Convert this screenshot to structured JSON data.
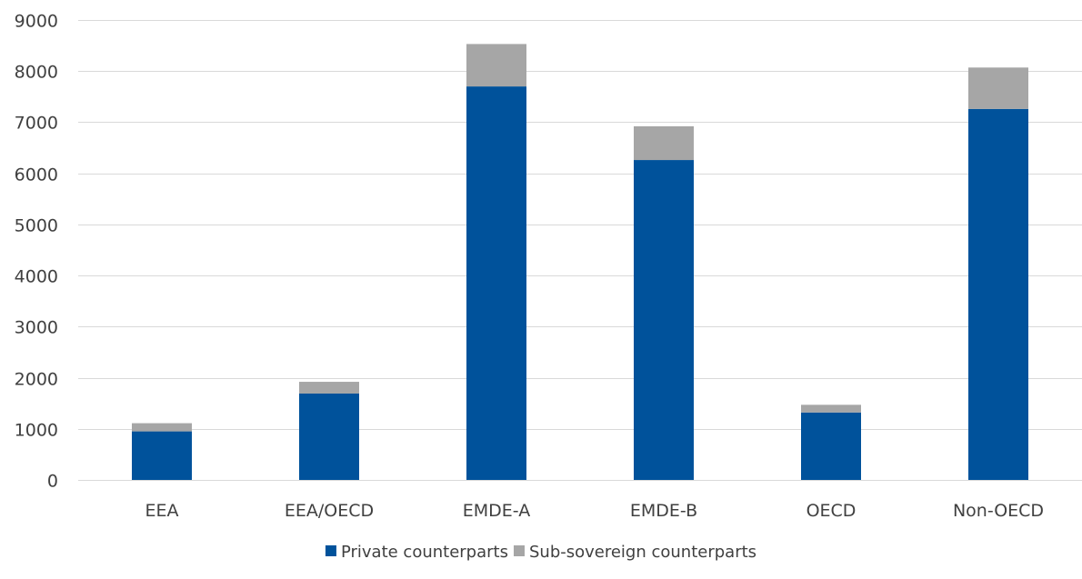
{
  "chart_data": {
    "type": "bar",
    "stacked": true,
    "categories": [
      "EEA",
      "EEA/OECD",
      "EMDE-A",
      "EMDE-B",
      "OECD",
      "Non-OECD"
    ],
    "series": [
      {
        "name": "Private counterparts",
        "values": [
          950,
          1690,
          7700,
          6260,
          1320,
          7260
        ],
        "color": "#00529b"
      },
      {
        "name": "Sub-sovereign counterparts",
        "values": [
          160,
          230,
          830,
          660,
          150,
          810
        ],
        "color": "#a6a6a6"
      }
    ],
    "ylim": [
      0,
      9000
    ],
    "yticks": [
      0,
      1000,
      2000,
      3000,
      4000,
      5000,
      6000,
      7000,
      8000,
      9000
    ],
    "grid": true,
    "legend": "bottom",
    "title": "",
    "xlabel": "",
    "ylabel": ""
  }
}
